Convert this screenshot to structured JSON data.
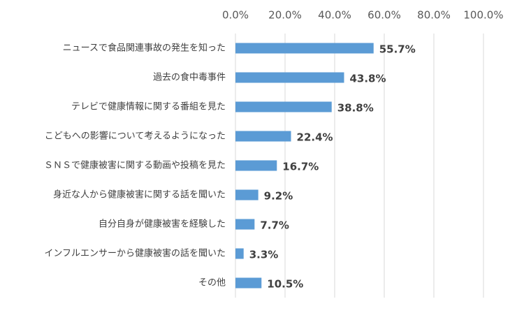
{
  "chart_data": {
    "type": "hbar",
    "categories": [
      "ニュースで食品関連事故の発生を知った",
      "過去の食中毒事件",
      "テレビで健康情報に関する番組を見た",
      "こどもへの影響について考えるようになった",
      "ＳＮＳで健康被害に関する動画や投稿を見た",
      "身近な人から健康被害に関する話を聞いた",
      "自分自身が健康被害を経験した",
      "インフルエンサーから健康被害の話を聞いた",
      "その他"
    ],
    "values": [
      55.7,
      43.8,
      38.8,
      22.4,
      16.7,
      9.2,
      7.7,
      3.3,
      10.5
    ],
    "value_labels": [
      "55.7%",
      "43.8%",
      "38.8%",
      "22.4%",
      "16.7%",
      "9.2%",
      "7.7%",
      "3.3%",
      "10.5%"
    ],
    "color": "#5b9bd5",
    "xlim": [
      0,
      100
    ],
    "xticks": [
      {
        "value": 0,
        "label": "0.0%"
      },
      {
        "value": 20,
        "label": "20.0%"
      },
      {
        "value": 40,
        "label": "40.0%"
      },
      {
        "value": 60,
        "label": "60.0%"
      },
      {
        "value": 80,
        "label": "80.0%"
      },
      {
        "value": 100,
        "label": "100.0%"
      }
    ],
    "grid": true
  }
}
